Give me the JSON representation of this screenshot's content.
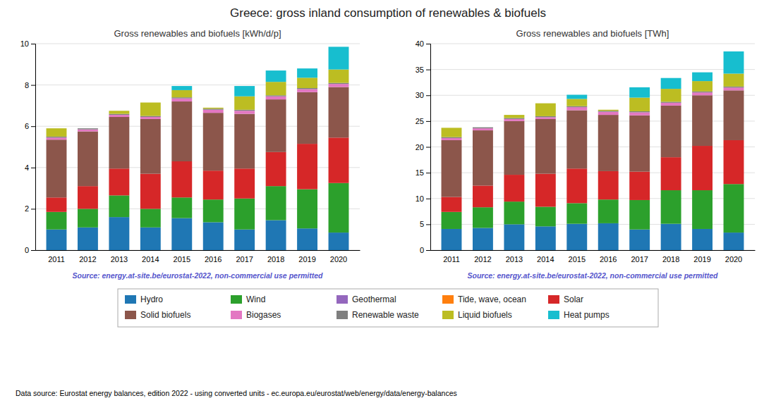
{
  "chart_data": [
    {
      "type": "bar",
      "stacked": true,
      "grid": true,
      "legend": "bottom",
      "title": "Greece: gross inland consumption of renewables & biofuels",
      "subtitle": "Gross renewables and biofuels [kWh/d/p]",
      "annotations": [
        "Source: energy.at-site.be/eurostat-2022, non-commercial use permitted",
        "Data source: Eurostat energy balances, edition 2022 - using converted units - ec.europa.eu/eurostat/web/energy/data/energy-balances"
      ],
      "categories": [
        2011,
        2012,
        2013,
        2014,
        2015,
        2016,
        2017,
        2018,
        2019,
        2020
      ],
      "ylim": [
        0,
        10
      ],
      "yticks": [
        0,
        2,
        4,
        6,
        8,
        10
      ],
      "series": [
        {
          "name": "Hydro",
          "color": "#1f77b4",
          "values": [
            1.0,
            1.1,
            1.6,
            1.1,
            1.55,
            1.35,
            1.0,
            1.45,
            1.05,
            0.85
          ]
        },
        {
          "name": "Wind",
          "color": "#2ca02c",
          "values": [
            0.85,
            0.9,
            1.05,
            0.9,
            1.0,
            1.1,
            1.5,
            1.65,
            1.9,
            2.4
          ]
        },
        {
          "name": "Geothermal",
          "color": "#9467bd",
          "values": [
            0.0,
            0.0,
            0.0,
            0.0,
            0.0,
            0.0,
            0.0,
            0.0,
            0.0,
            0.0
          ]
        },
        {
          "name": "Tide, wave, ocean",
          "color": "#ff7f0e",
          "values": [
            0.0,
            0.0,
            0.0,
            0.0,
            0.0,
            0.0,
            0.0,
            0.0,
            0.0,
            0.0
          ]
        },
        {
          "name": "Solar",
          "color": "#d62728",
          "values": [
            0.7,
            1.1,
            1.3,
            1.7,
            1.75,
            1.4,
            1.45,
            1.65,
            2.2,
            2.2
          ]
        },
        {
          "name": "Solid biofuels",
          "color": "#8c564b",
          "values": [
            2.8,
            2.65,
            2.5,
            2.65,
            2.9,
            2.8,
            2.65,
            2.55,
            2.5,
            2.45
          ]
        },
        {
          "name": "Biogases",
          "color": "#e377c2",
          "values": [
            0.1,
            0.1,
            0.1,
            0.1,
            0.15,
            0.15,
            0.15,
            0.15,
            0.15,
            0.15
          ]
        },
        {
          "name": "Renewable waste",
          "color": "#7f7f7f",
          "values": [
            0.05,
            0.05,
            0.05,
            0.05,
            0.05,
            0.05,
            0.05,
            0.05,
            0.05,
            0.05
          ]
        },
        {
          "name": "Liquid biofuels",
          "color": "#bcbd22",
          "values": [
            0.4,
            0.0,
            0.15,
            0.65,
            0.35,
            0.05,
            0.65,
            0.65,
            0.5,
            0.65
          ]
        },
        {
          "name": "Heat pumps",
          "color": "#17becf",
          "values": [
            0.0,
            0.0,
            0.0,
            0.0,
            0.2,
            0.0,
            0.5,
            0.55,
            0.45,
            1.1
          ]
        }
      ]
    },
    {
      "type": "bar",
      "stacked": true,
      "grid": true,
      "subtitle": "Gross renewables and biofuels [TWh]",
      "annotations": [
        "Source: energy.at-site.be/eurostat-2022, non-commercial use permitted"
      ],
      "categories": [
        2011,
        2012,
        2013,
        2014,
        2015,
        2016,
        2017,
        2018,
        2019,
        2020
      ],
      "ylim": [
        0,
        40
      ],
      "yticks": [
        0,
        5,
        10,
        15,
        20,
        25,
        30,
        35,
        40
      ],
      "series": [
        {
          "name": "Hydro",
          "color": "#1f77b4",
          "values": [
            4.1,
            4.3,
            5.0,
            4.6,
            5.1,
            5.2,
            4.0,
            5.1,
            4.1,
            3.4
          ]
        },
        {
          "name": "Wind",
          "color": "#2ca02c",
          "values": [
            3.3,
            4.0,
            4.4,
            3.8,
            4.0,
            4.6,
            5.7,
            6.5,
            7.5,
            9.4
          ]
        },
        {
          "name": "Geothermal",
          "color": "#9467bd",
          "values": [
            0.0,
            0.0,
            0.0,
            0.0,
            0.0,
            0.0,
            0.0,
            0.0,
            0.0,
            0.0
          ]
        },
        {
          "name": "Tide, wave, ocean",
          "color": "#ff7f0e",
          "values": [
            0.0,
            0.0,
            0.0,
            0.0,
            0.0,
            0.0,
            0.0,
            0.0,
            0.0,
            0.0
          ]
        },
        {
          "name": "Solar",
          "color": "#d62728",
          "values": [
            2.9,
            4.2,
            5.2,
            6.4,
            6.7,
            5.5,
            5.5,
            6.4,
            8.6,
            8.5
          ]
        },
        {
          "name": "Solid biofuels",
          "color": "#8c564b",
          "values": [
            11.0,
            10.7,
            10.4,
            10.6,
            11.3,
            10.9,
            10.9,
            10.0,
            9.8,
            9.65
          ]
        },
        {
          "name": "Biogases",
          "color": "#e377c2",
          "values": [
            0.4,
            0.4,
            0.4,
            0.35,
            0.6,
            0.6,
            0.6,
            0.55,
            0.55,
            0.55
          ]
        },
        {
          "name": "Renewable waste",
          "color": "#7f7f7f",
          "values": [
            0.2,
            0.2,
            0.2,
            0.2,
            0.2,
            0.2,
            0.2,
            0.2,
            0.2,
            0.2
          ]
        },
        {
          "name": "Liquid biofuels",
          "color": "#bcbd22",
          "values": [
            1.8,
            0.0,
            0.6,
            2.5,
            1.4,
            0.2,
            2.65,
            2.5,
            2.0,
            2.5
          ]
        },
        {
          "name": "Heat pumps",
          "color": "#17becf",
          "values": [
            0.0,
            0.0,
            0.0,
            0.0,
            0.8,
            0.0,
            2.0,
            2.1,
            1.7,
            4.3
          ]
        }
      ]
    }
  ]
}
